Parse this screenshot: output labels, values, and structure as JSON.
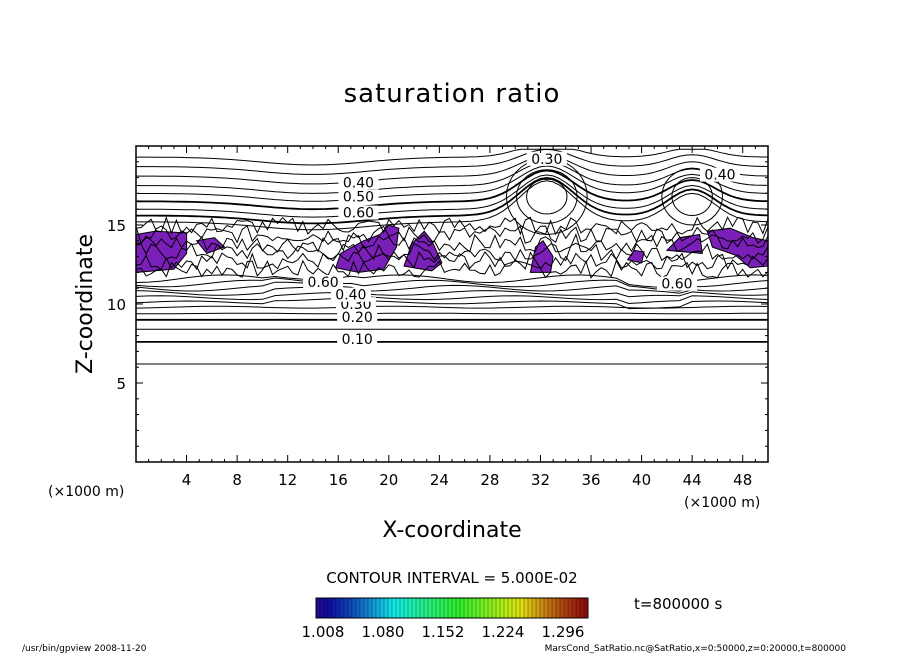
{
  "chart_data": {
    "type": "contour",
    "title": "saturation ratio",
    "xlabel": "X-coordinate",
    "ylabel": "Z-coordinate",
    "x_unit": "(×1000 m)",
    "y_unit": "(×1000 m)",
    "xlim": [
      0,
      50
    ],
    "ylim": [
      0,
      20
    ],
    "x_ticks": [
      4,
      8,
      12,
      16,
      20,
      24,
      28,
      32,
      36,
      40,
      44,
      48
    ],
    "y_ticks": [
      5,
      10,
      15
    ],
    "contour_interval_text": "CONTOUR INTERVAL = 5.000E-02",
    "contour_labels": [
      {
        "text": "0.10",
        "x": 17.5,
        "z": 7.6
      },
      {
        "text": "0.20",
        "x": 17.5,
        "z": 9.0
      },
      {
        "text": "0.30",
        "x": 17.4,
        "z": 9.8
      },
      {
        "text": "0.40",
        "x": 17.0,
        "z": 10.4
      },
      {
        "text": "0.60",
        "x": 14.8,
        "z": 11.2
      },
      {
        "text": "0.30",
        "x": 32.5,
        "z": 19.0
      },
      {
        "text": "0.40",
        "x": 46.2,
        "z": 18.0
      },
      {
        "text": "0.40",
        "x": 17.6,
        "z": 17.5
      },
      {
        "text": "0.50",
        "x": 17.6,
        "z": 16.6
      },
      {
        "text": "0.60",
        "x": 17.6,
        "z": 15.6
      },
      {
        "text": "0.60",
        "x": 42.8,
        "z": 11.1
      }
    ],
    "colorbar": {
      "tick_labels": [
        "1.008",
        "1.080",
        "1.152",
        "1.224",
        "1.296"
      ],
      "range": [
        1.008,
        1.296
      ]
    },
    "time_label": "t=800000 s",
    "fill_color": "#7a1fb8"
  },
  "footer": {
    "left": "/usr/bin/gpview   2008-11-20",
    "right": "MarsCond_SatRatio.nc@SatRatio,x=0:50000,z=0:20000,t=800000"
  }
}
